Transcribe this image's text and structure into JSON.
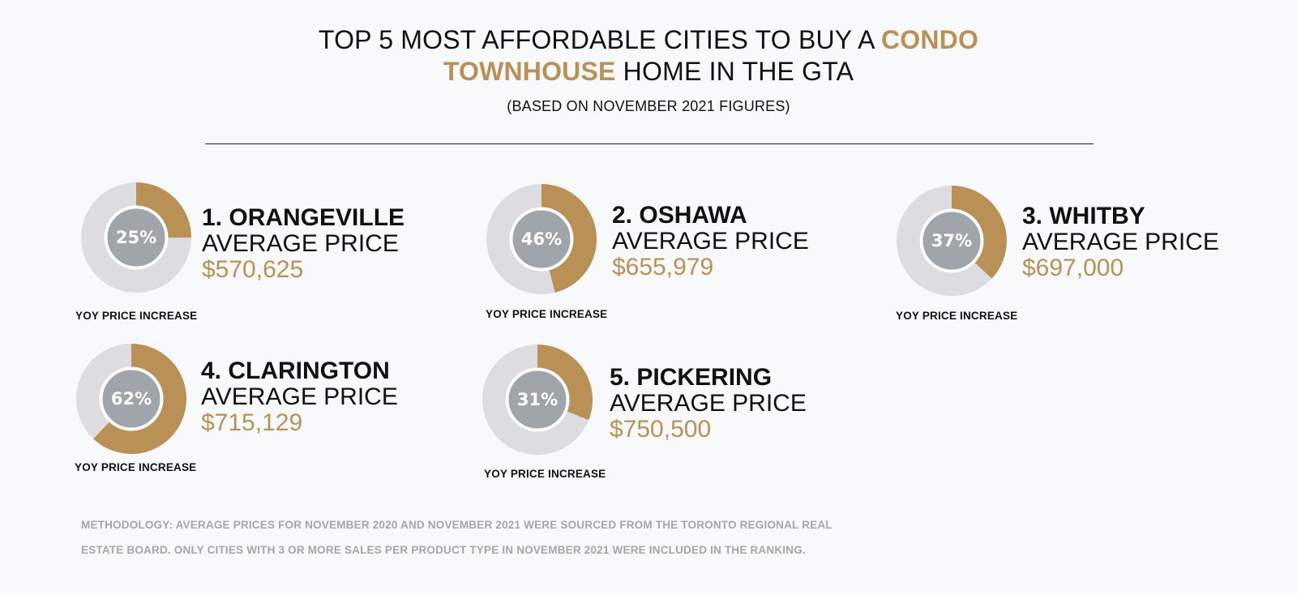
{
  "header": {
    "title_part1": "TOP 5 MOST AFFORDABLE CITIES TO BUY A ",
    "title_accent1": "CONDO",
    "title_accent2": "TOWNHOUSE",
    "title_part2": " HOME IN THE GTA",
    "subtitle": "(BASED ON NOVEMBER 2021 FIGURES)"
  },
  "colors": {
    "accent": "#b99156",
    "ring": "#dddde1",
    "center": "#a0a5ab",
    "background": "#f8f9fa"
  },
  "chart_data": {
    "type": "pie",
    "categories": [
      "ORANGEVILLE",
      "OSHAWA",
      "WHITBY",
      "CLARINGTON",
      "PICKERING"
    ],
    "series": [
      {
        "name": "YOY PRICE INCREASE",
        "values": [
          25,
          46,
          37,
          62,
          31
        ]
      }
    ],
    "items": [
      {
        "rank_city": "1. ORANGEVILLE",
        "avg_label": "AVERAGE PRICE",
        "price": "$570,625",
        "yoy_value": 25,
        "yoy_text": "25%",
        "yoy_label": "YOY PRICE INCREASE"
      },
      {
        "rank_city": "2. OSHAWA",
        "avg_label": "AVERAGE PRICE",
        "price": "$655,979",
        "yoy_value": 46,
        "yoy_text": "46%",
        "yoy_label": "YOY PRICE INCREASE"
      },
      {
        "rank_city": "3. WHITBY",
        "avg_label": "AVERAGE PRICE",
        "price": "$697,000",
        "yoy_value": 37,
        "yoy_text": "37%",
        "yoy_label": "YOY PRICE INCREASE"
      },
      {
        "rank_city": "4. CLARINGTON",
        "avg_label": "AVERAGE PRICE",
        "price": "$715,129",
        "yoy_value": 62,
        "yoy_text": "62%",
        "yoy_label": "YOY PRICE INCREASE"
      },
      {
        "rank_city": "5. PICKERING",
        "avg_label": "AVERAGE PRICE",
        "price": "$750,500",
        "yoy_value": 31,
        "yoy_text": "31%",
        "yoy_label": "YOY PRICE INCREASE"
      }
    ]
  },
  "footer": {
    "methodology_line1": "METHODOLOGY: AVERAGE PRICES FOR NOVEMBER 2020 AND NOVEMBER 2021 WERE SOURCED FROM THE TORONTO REGIONAL REAL",
    "methodology_line2": "ESTATE BOARD. ONLY CITIES WITH 3 OR MORE SALES PER PRODUCT TYPE IN NOVEMBER 2021 WERE INCLUDED IN THE RANKING."
  }
}
